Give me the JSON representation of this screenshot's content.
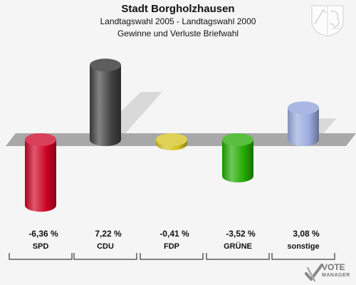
{
  "header": {
    "title": "Stadt Borgholzhausen",
    "subtitle": "Landtagswahl 2005 - Landtagswahl 2000",
    "description": "Gewinne und Verluste Briefwahl"
  },
  "branding": {
    "logo_line1": "VOTE",
    "logo_line2": "MANAGER"
  },
  "chart_data": {
    "type": "bar",
    "title": "Stadt Borgholzhausen",
    "subtitle": "Landtagswahl 2005 - Landtagswahl 2000 / Gewinne und Verluste Briefwahl",
    "categories": [
      "SPD",
      "CDU",
      "FDP",
      "GRÜNE",
      "sonstige"
    ],
    "values": [
      -6.36,
      7.22,
      -0.41,
      -3.52,
      3.08
    ],
    "value_labels": [
      "-6,36 %",
      "7,22 %",
      "-0,41 %",
      "-3,52 %",
      "3,08 %"
    ],
    "colors": [
      "#cc0022",
      "#404040",
      "#d4c21e",
      "#22aa00",
      "#9aaadd"
    ],
    "ylim": [
      -8,
      8
    ],
    "grid": false,
    "legend": "none"
  }
}
